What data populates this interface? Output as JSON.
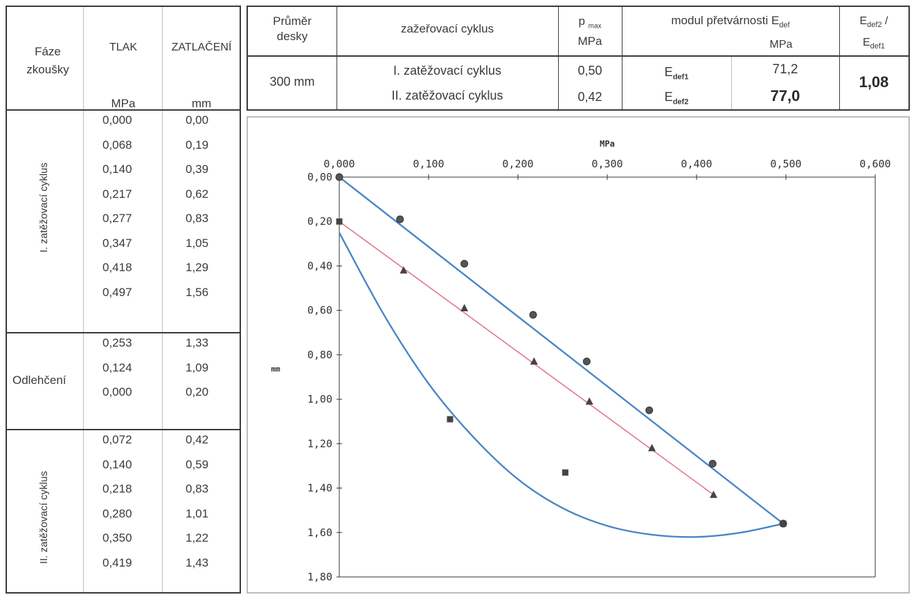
{
  "left_table": {
    "headers": {
      "phase": "Fáze zkoušky",
      "pressure": "TLAK",
      "settlement": "ZATLAČENÍ",
      "pressure_unit": "MPa",
      "settlement_unit": "mm"
    },
    "sections": [
      {
        "label": "I. zatěžovací cyklus",
        "rows": [
          [
            "0,000",
            "0,00"
          ],
          [
            "0,068",
            "0,19"
          ],
          [
            "0,140",
            "0,39"
          ],
          [
            "0,217",
            "0,62"
          ],
          [
            "0,277",
            "0,83"
          ],
          [
            "0,347",
            "1,05"
          ],
          [
            "0,418",
            "1,29"
          ],
          [
            "0,497",
            "1,56"
          ]
        ]
      },
      {
        "label": "Odlehčení",
        "rows": [
          [
            "0,253",
            "1,33"
          ],
          [
            "0,124",
            "1,09"
          ],
          [
            "0,000",
            "0,20"
          ]
        ]
      },
      {
        "label": "II. zatěžovací cyklus",
        "rows": [
          [
            "0,072",
            "0,42"
          ],
          [
            "0,140",
            "0,59"
          ],
          [
            "0,218",
            "0,83"
          ],
          [
            "0,280",
            "1,01"
          ],
          [
            "0,350",
            "1,22"
          ],
          [
            "0,419",
            "1,43"
          ]
        ]
      }
    ]
  },
  "top_table": {
    "h_plate_1": "Průměr",
    "h_plate_2": "desky",
    "h_cycle": "zažeřovací cyklus",
    "h_pmax": "p",
    "h_pmax_sub": "max",
    "h_pmax_unit": "MPa",
    "h_modulus": "modul přetvárnosti E",
    "h_modulus_sub": "def",
    "h_modulus_unit": "MPa",
    "h_ratio_a": "E",
    "h_ratio_a_sub": "def2",
    "h_ratio_slash": " /",
    "h_ratio_b": "E",
    "h_ratio_b_sub": "def1",
    "plate": "300 mm",
    "cycle1": "I. zatěžovací cyklus",
    "cycle2": "II. zatěžovací cyklus",
    "p1": "0,50",
    "p2": "0,42",
    "e1_label": "E",
    "e1_sub": "def1",
    "e2_label": "E",
    "e2_sub": "def2",
    "e1_value": "71,2",
    "e2_value": "77,0",
    "ratio": "1,08"
  },
  "chart_data": {
    "type": "scatter",
    "xlabel": "MPa",
    "ylabel": "mm",
    "xlim": [
      0,
      0.6
    ],
    "ylim": [
      0,
      1.8
    ],
    "y_inverted": true,
    "x_axis_position": "top",
    "x_ticks": [
      "0,000",
      "0,100",
      "0,200",
      "0,300",
      "0,400",
      "0,500",
      "0,600"
    ],
    "y_ticks": [
      "0,00",
      "0,20",
      "0,40",
      "0,60",
      "0,80",
      "1,00",
      "1,20",
      "1,40",
      "1,60",
      "1,80"
    ],
    "colors": {
      "loading1": "#4a86c5",
      "unloading": "#4a86c5",
      "loading2": "#e0788a"
    },
    "series": [
      {
        "marker": "circle",
        "x": [
          0.0,
          0.068,
          0.14,
          0.217,
          0.277,
          0.347,
          0.418,
          0.497
        ],
        "y": [
          0.0,
          0.19,
          0.39,
          0.62,
          0.83,
          1.05,
          1.29,
          1.56
        ]
      },
      {
        "marker": "square",
        "x": [
          0.497,
          0.253,
          0.124,
          0.0
        ],
        "y": [
          1.56,
          1.33,
          1.09,
          0.2
        ]
      },
      {
        "marker": "triangle",
        "x": [
          0.072,
          0.14,
          0.218,
          0.28,
          0.35,
          0.419
        ],
        "y": [
          0.42,
          0.59,
          0.83,
          1.01,
          1.22,
          1.43
        ]
      }
    ],
    "curves": [
      {
        "name": "loading1-line",
        "x": [
          0.0,
          0.497
        ],
        "y": [
          0.0,
          1.56
        ]
      },
      {
        "name": "loading2-line",
        "x": [
          0.0,
          0.419
        ],
        "y": [
          0.2,
          1.43
        ]
      },
      {
        "name": "unloading-curve",
        "x": [
          0.0,
          0.05,
          0.1,
          0.15,
          0.2,
          0.25,
          0.3,
          0.35,
          0.4,
          0.45,
          0.497
        ],
        "y": [
          0.25,
          0.62,
          0.93,
          1.17,
          1.36,
          1.49,
          1.57,
          1.61,
          1.62,
          1.6,
          1.56
        ]
      }
    ]
  }
}
